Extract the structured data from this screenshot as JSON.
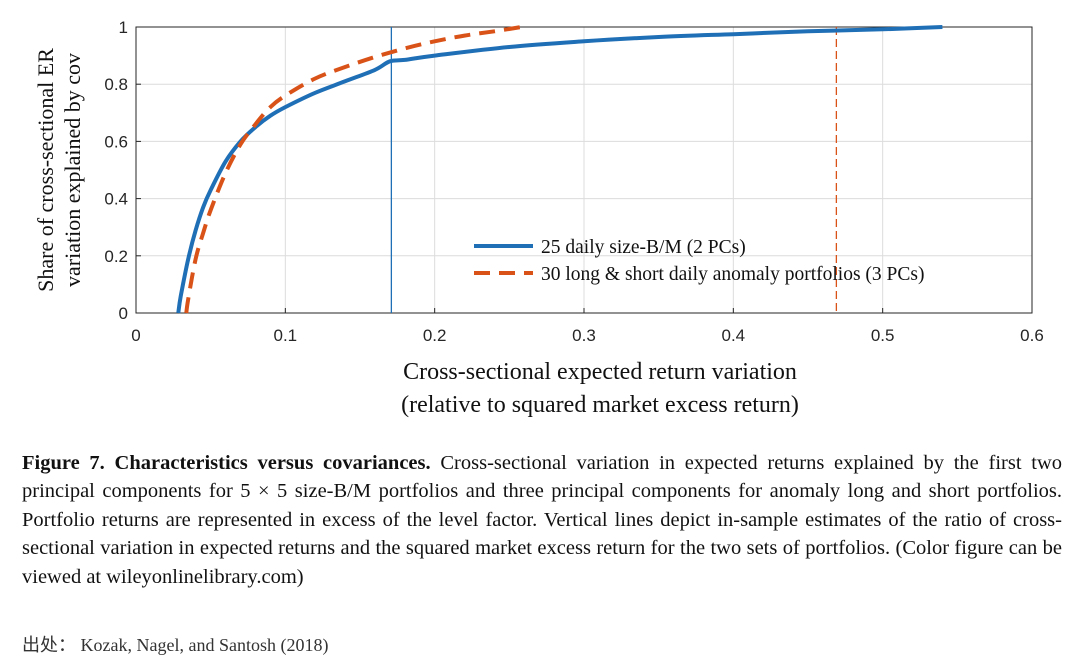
{
  "chart_data": {
    "type": "line",
    "xlabel_line1": "Cross-sectional expected return variation",
    "xlabel_line2": "(relative to squared market excess return)",
    "ylabel_line1": "Share of cross-sectional ER",
    "ylabel_line2": "variation explained by cov",
    "xlim": [
      0,
      0.6
    ],
    "ylim": [
      0,
      1
    ],
    "xticks": [
      "0",
      "0.1",
      "0.2",
      "0.3",
      "0.4",
      "0.5",
      "0.6"
    ],
    "yticks": [
      "0",
      "0.2",
      "0.4",
      "0.6",
      "0.8",
      "1"
    ],
    "grid": true,
    "legend_position": "lower-right",
    "series": [
      {
        "name": "25 daily size-B/M (2 PCs)",
        "color": "#1f6fb6",
        "style": "solid",
        "x": [
          0.0283,
          0.03,
          0.035,
          0.04,
          0.045,
          0.05,
          0.06,
          0.07,
          0.08,
          0.09,
          0.1,
          0.12,
          0.14,
          0.16,
          0.17,
          0.18,
          0.2,
          0.25,
          0.3,
          0.35,
          0.4,
          0.45,
          0.5,
          0.54
        ],
        "y": [
          0.0,
          0.06,
          0.19,
          0.29,
          0.37,
          0.43,
          0.53,
          0.6,
          0.65,
          0.69,
          0.72,
          0.77,
          0.81,
          0.85,
          0.88,
          0.885,
          0.9,
          0.93,
          0.95,
          0.965,
          0.975,
          0.985,
          0.992,
          1.0
        ]
      },
      {
        "name": "30 long & short daily anomaly portfolios (3 PCs)",
        "color": "#d95319",
        "style": "dashed",
        "x": [
          0.0337,
          0.035,
          0.04,
          0.045,
          0.05,
          0.06,
          0.07,
          0.08,
          0.09,
          0.1,
          0.12,
          0.14,
          0.16,
          0.18,
          0.2,
          0.22,
          0.24,
          0.258
        ],
        "y": [
          0.0,
          0.05,
          0.19,
          0.28,
          0.36,
          0.49,
          0.59,
          0.66,
          0.72,
          0.76,
          0.82,
          0.86,
          0.895,
          0.925,
          0.95,
          0.97,
          0.985,
          1.0
        ]
      }
    ],
    "vlines": [
      {
        "x": 0.171,
        "color": "#1f6fb6",
        "style": "solid"
      },
      {
        "x": 0.469,
        "color": "#d95319",
        "style": "dashed"
      }
    ]
  },
  "caption": {
    "label": "Figure 7.  Characteristics versus covariances.",
    "text": " Cross-sectional variation in expected returns explained by the first two principal components for 5 × 5 size-B/M portfolios and three principal components for anomaly long and short portfolios. Portfolio returns are represented in excess of the level factor. Vertical lines depict in-sample estimates of the ratio of cross-sectional variation in expected returns and the squared market excess return for the two sets of portfolios. (Color figure can be viewed at wileyonlinelibrary.com)"
  },
  "source": "出处： Kozak, Nagel, and Santosh (2018)"
}
